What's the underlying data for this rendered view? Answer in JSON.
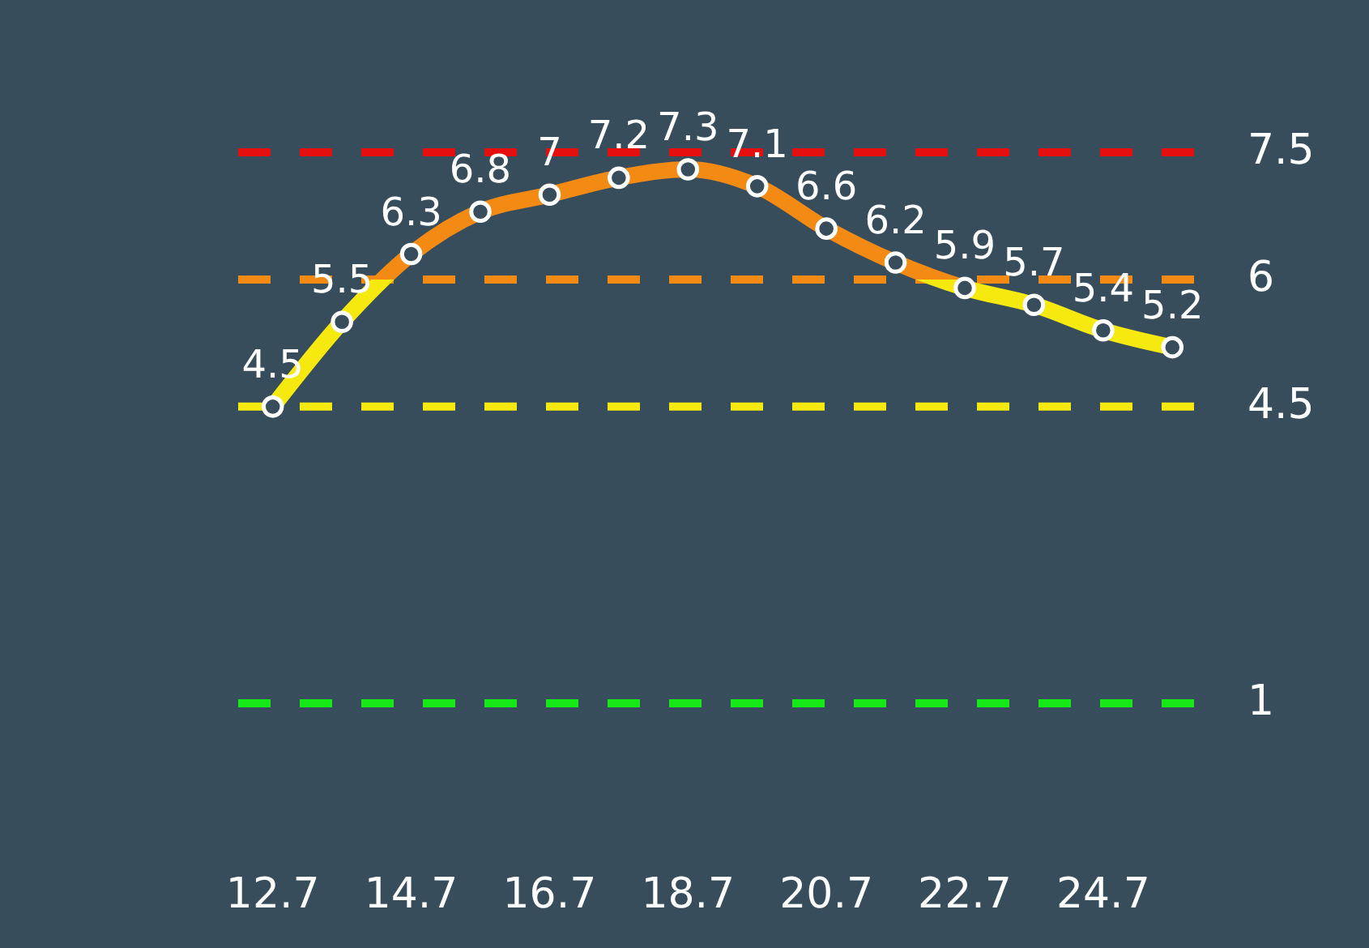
{
  "chart_data": {
    "type": "line",
    "categories": [
      "12.7",
      null,
      "14.7",
      null,
      "16.7",
      null,
      "18.7",
      null,
      "20.7",
      null,
      "22.7",
      null,
      "24.7",
      null
    ],
    "series": [
      {
        "values": [
          4.5,
          5.5,
          6.3,
          6.8,
          7,
          7.2,
          7.3,
          7.1,
          6.6,
          6.2,
          5.9,
          5.7,
          5.4,
          5.2
        ]
      }
    ],
    "tick_labels": "x",
    "data_labels": true,
    "marker": "circle",
    "ref_lines": [
      {
        "axis": "y",
        "value": 7.5,
        "label": "7.5",
        "color": "#e50f0f",
        "line_style": "dashed"
      },
      {
        "axis": "y",
        "value": 6,
        "label": "6",
        "color": "#f28a14",
        "line_style": "dashed"
      },
      {
        "axis": "y",
        "value": 4.5,
        "label": "4.5",
        "color": "#f5e90f",
        "line_style": "dashed"
      },
      {
        "axis": "y",
        "value": 1,
        "label": "1",
        "color": "#17e817",
        "line_style": "dashed"
      }
    ]
  }
}
